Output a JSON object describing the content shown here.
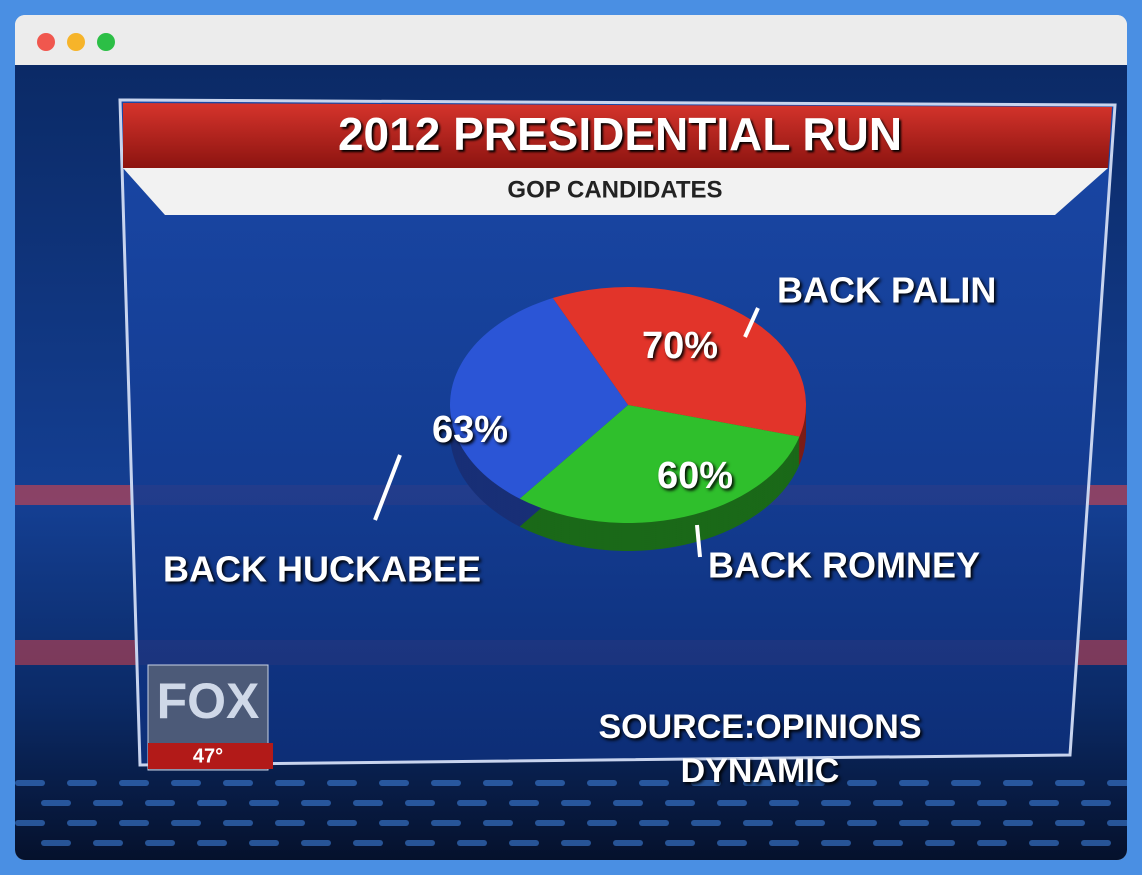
{
  "chart_data": {
    "type": "pie",
    "title": "2012 PRESIDENTIAL RUN",
    "subtitle": "GOP CANDIDATES",
    "categories": [
      "BACK PALIN",
      "BACK ROMNEY",
      "BACK HUCKABEE"
    ],
    "values": [
      70,
      60,
      63
    ],
    "value_labels": [
      "70%",
      "60%",
      "63%"
    ],
    "colors": [
      "#e2342a",
      "#2fbf2c",
      "#2b55d6"
    ],
    "source": "SOURCE:OPINIONS DYNAMIC"
  },
  "logo": {
    "brand": "FOX",
    "channel": "47°"
  }
}
